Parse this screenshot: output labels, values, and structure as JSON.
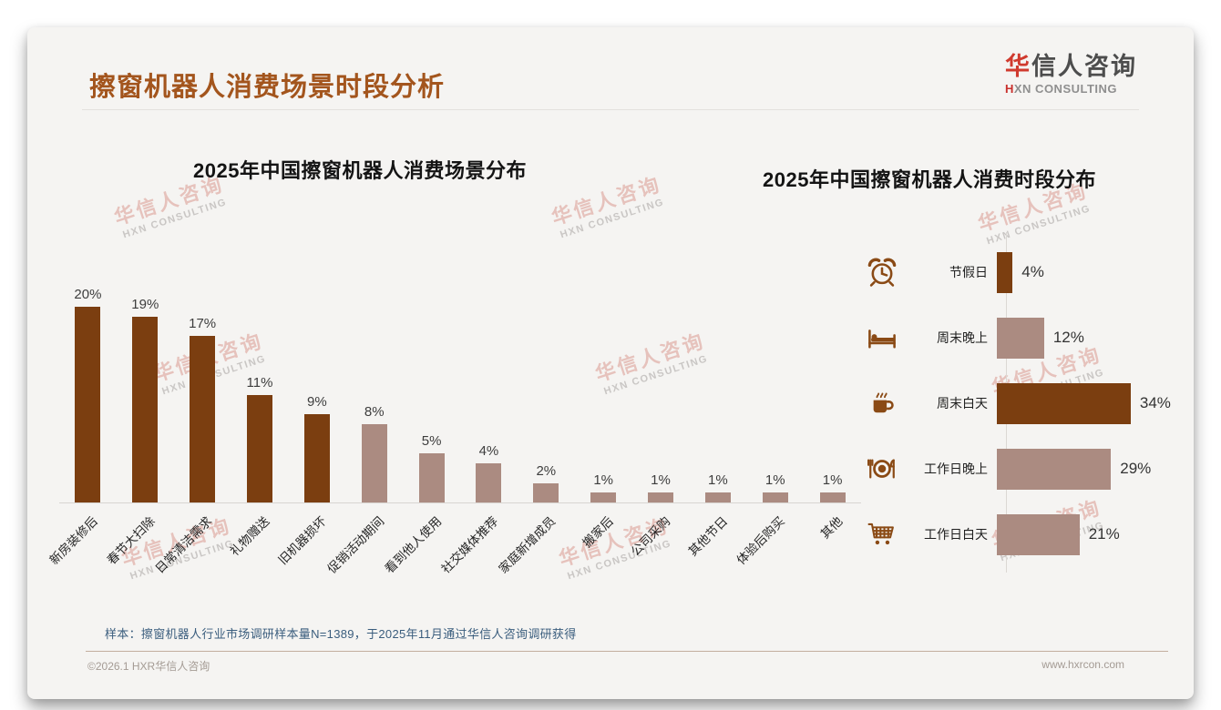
{
  "page": {
    "title": "擦窗机器人消费场景时段分析",
    "logo": {
      "brand_accent": "华",
      "brand_text": "信人咨询",
      "subtitle_accent": "H",
      "subtitle_text": "XN CONSULTING"
    },
    "watermark": {
      "line1": "华信人咨询",
      "line2": "HXN CONSULTING"
    },
    "footnote": "样本：擦窗机器人行业市场调研样本量N=1389，于2025年11月通过华信人咨询调研获得",
    "footer_left": "©2026.1 HXR华信人咨询",
    "footer_right": "www.hxrcon.com"
  },
  "colors": {
    "title_brown": "#a3551d",
    "bar_dark": "#7b3e10",
    "bar_light": "#ab8b81",
    "icon_brown": "#8a4a15",
    "note_blue": "#3a5d7d"
  },
  "chart_data": [
    {
      "type": "bar",
      "title": "2025年中国擦窗机器人消费场景分布",
      "categories": [
        "新房装修后",
        "春节大扫除",
        "日常清洁需求",
        "礼物赠送",
        "旧机器损坏",
        "促销活动期间",
        "看到他人使用",
        "社交媒体推荐",
        "家庭新增成员",
        "搬家后",
        "公司采购",
        "其他节日",
        "体验后购买",
        "其他"
      ],
      "values": [
        20,
        19,
        17,
        11,
        9,
        8,
        5,
        4,
        2,
        1,
        1,
        1,
        1,
        1
      ],
      "unit": "%",
      "bar_colors": [
        "dark",
        "dark",
        "dark",
        "dark",
        "dark",
        "light",
        "light",
        "light",
        "light",
        "light",
        "light",
        "light",
        "light",
        "light"
      ],
      "data_labels": true,
      "ylim": [
        0,
        20
      ],
      "grid": false,
      "xlabel": "",
      "ylabel": ""
    },
    {
      "type": "bar-horizontal",
      "title": "2025年中国擦窗机器人消费时段分布",
      "categories": [
        "节假日",
        "周末晚上",
        "周末白天",
        "工作日晚上",
        "工作日白天"
      ],
      "values": [
        4,
        12,
        34,
        29,
        21
      ],
      "unit": "%",
      "bar_colors": [
        "dark",
        "light",
        "dark",
        "light",
        "light"
      ],
      "icons": [
        "alarm-clock",
        "bed",
        "coffee-cup",
        "dining-plate",
        "shopping-cart"
      ],
      "data_labels": true,
      "xlim": [
        0,
        34
      ],
      "grid": false,
      "xlabel": "",
      "ylabel": ""
    }
  ]
}
